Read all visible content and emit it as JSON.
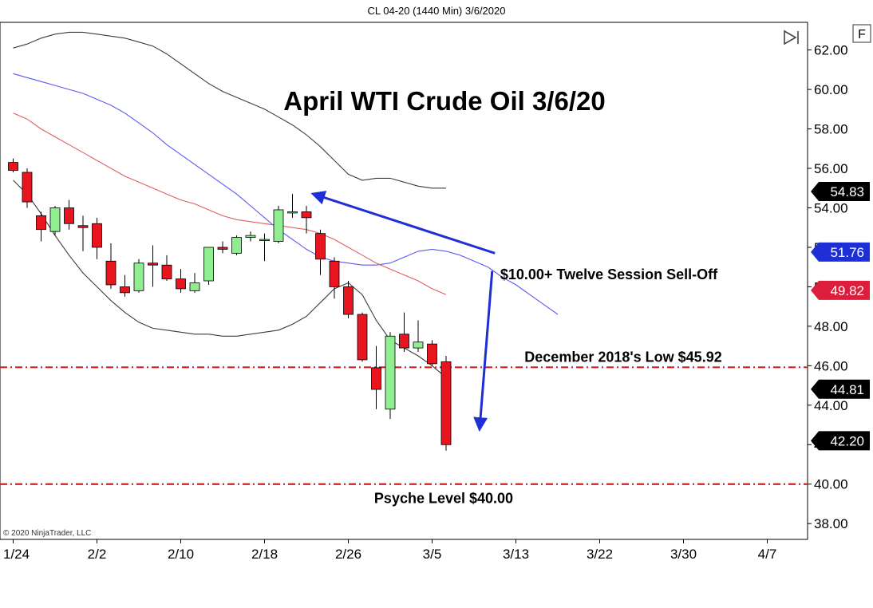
{
  "header": {
    "title": "CL 04-20 (1440 Min)  3/6/2020"
  },
  "toolbar": {
    "f_label": "F"
  },
  "copyright": "© 2020 NinjaTrader, LLC",
  "colors": {
    "up": "#90ee90",
    "down": "#e8141e",
    "upper_band": "#3c3c3c",
    "lower_band": "#3c3c3c",
    "blue_ma": "#5a5af0",
    "red_ma": "#e06060",
    "level": "#d42020",
    "arrow": "#1f2fd6",
    "tag_black": "#000000",
    "tag_blue": "#1f2fd6",
    "tag_red": "#dc1e3c"
  },
  "chart_data": {
    "type": "candlestick",
    "title": "April WTI Crude Oil 3/6/20",
    "xlabel": "",
    "ylabel": "",
    "ylim": [
      37.2,
      63.4
    ],
    "y_ticks": [
      {
        "value": 62,
        "label": "62.00"
      },
      {
        "value": 60,
        "label": "60.00"
      },
      {
        "value": 58,
        "label": "58.00"
      },
      {
        "value": 56,
        "label": "56.00"
      },
      {
        "value": 54,
        "label": "54.00"
      },
      {
        "value": 52,
        "label": "52.00"
      },
      {
        "value": 50,
        "label": "50.00"
      },
      {
        "value": 48,
        "label": "48.00"
      },
      {
        "value": 46,
        "label": "46.00"
      },
      {
        "value": 44,
        "label": "44.00"
      },
      {
        "value": 42,
        "label": "42.00"
      },
      {
        "value": 40,
        "label": "40.00"
      },
      {
        "value": 38,
        "label": "38.00"
      }
    ],
    "x_ticks": [
      {
        "index": 0,
        "label": "1/24"
      },
      {
        "index": 6,
        "label": "2/2"
      },
      {
        "index": 12,
        "label": "2/10"
      },
      {
        "index": 18,
        "label": "2/18"
      },
      {
        "index": 24,
        "label": "2/26"
      },
      {
        "index": 30,
        "label": "3/5"
      },
      {
        "index": 36,
        "label": "3/13"
      },
      {
        "index": 42,
        "label": "3/22"
      },
      {
        "index": 48,
        "label": "3/30"
      },
      {
        "index": 54,
        "label": "4/7"
      }
    ],
    "candles": [
      {
        "o": 56.3,
        "h": 56.5,
        "l": 55.8,
        "c": 55.9
      },
      {
        "o": 55.8,
        "h": 56.0,
        "l": 54.0,
        "c": 54.3
      },
      {
        "o": 53.6,
        "h": 53.8,
        "l": 52.3,
        "c": 52.9
      },
      {
        "o": 52.8,
        "h": 54.1,
        "l": 52.6,
        "c": 54.0
      },
      {
        "o": 54.0,
        "h": 54.4,
        "l": 52.9,
        "c": 53.2
      },
      {
        "o": 53.1,
        "h": 53.6,
        "l": 51.8,
        "c": 53.0
      },
      {
        "o": 53.2,
        "h": 53.5,
        "l": 51.4,
        "c": 52.0
      },
      {
        "o": 51.3,
        "h": 52.2,
        "l": 49.9,
        "c": 50.1
      },
      {
        "o": 50.0,
        "h": 50.6,
        "l": 49.5,
        "c": 49.7
      },
      {
        "o": 49.8,
        "h": 51.4,
        "l": 49.7,
        "c": 51.2
      },
      {
        "o": 51.2,
        "h": 52.1,
        "l": 50.0,
        "c": 51.1
      },
      {
        "o": 51.1,
        "h": 51.6,
        "l": 50.3,
        "c": 50.4
      },
      {
        "o": 50.4,
        "h": 50.9,
        "l": 49.7,
        "c": 49.9
      },
      {
        "o": 49.8,
        "h": 50.7,
        "l": 49.7,
        "c": 50.2
      },
      {
        "o": 50.3,
        "h": 52.0,
        "l": 50.1,
        "c": 52.0
      },
      {
        "o": 52.0,
        "h": 52.3,
        "l": 51.7,
        "c": 51.9
      },
      {
        "o": 51.7,
        "h": 52.6,
        "l": 51.6,
        "c": 52.5
      },
      {
        "o": 52.5,
        "h": 52.8,
        "l": 52.3,
        "c": 52.6
      },
      {
        "o": 52.4,
        "h": 52.7,
        "l": 51.3,
        "c": 52.4
      },
      {
        "o": 52.3,
        "h": 54.1,
        "l": 52.2,
        "c": 53.9
      },
      {
        "o": 53.8,
        "h": 54.7,
        "l": 53.5,
        "c": 53.8
      },
      {
        "o": 53.8,
        "h": 54.1,
        "l": 52.7,
        "c": 53.5
      },
      {
        "o": 52.7,
        "h": 52.9,
        "l": 50.6,
        "c": 51.4
      },
      {
        "o": 51.3,
        "h": 51.5,
        "l": 49.4,
        "c": 50.0
      },
      {
        "o": 50.0,
        "h": 50.3,
        "l": 48.4,
        "c": 48.6
      },
      {
        "o": 48.6,
        "h": 48.7,
        "l": 46.2,
        "c": 46.3
      },
      {
        "o": 45.9,
        "h": 47.0,
        "l": 43.8,
        "c": 44.8
      },
      {
        "o": 43.8,
        "h": 47.7,
        "l": 43.3,
        "c": 47.5
      },
      {
        "o": 47.6,
        "h": 48.7,
        "l": 46.7,
        "c": 46.9
      },
      {
        "o": 46.9,
        "h": 48.3,
        "l": 46.7,
        "c": 47.2
      },
      {
        "o": 47.1,
        "h": 47.3,
        "l": 46.0,
        "c": 46.1
      },
      {
        "o": 46.2,
        "h": 46.5,
        "l": 41.7,
        "c": 42.0
      }
    ],
    "upper_band": [
      [
        0,
        62.1
      ],
      [
        1,
        62.3
      ],
      [
        2,
        62.6
      ],
      [
        3,
        62.8
      ],
      [
        4,
        62.9
      ],
      [
        5,
        62.9
      ],
      [
        6,
        62.8
      ],
      [
        7,
        62.7
      ],
      [
        8,
        62.6
      ],
      [
        9,
        62.4
      ],
      [
        10,
        62.2
      ],
      [
        11,
        61.8
      ],
      [
        12,
        61.3
      ],
      [
        13,
        60.8
      ],
      [
        14,
        60.3
      ],
      [
        15,
        59.9
      ],
      [
        16,
        59.6
      ],
      [
        17,
        59.3
      ],
      [
        18,
        59.0
      ],
      [
        19,
        58.6
      ],
      [
        20,
        58.2
      ],
      [
        21,
        57.7
      ],
      [
        22,
        57.1
      ],
      [
        23,
        56.4
      ],
      [
        24,
        55.7
      ],
      [
        25,
        55.4
      ],
      [
        26,
        55.5
      ],
      [
        27,
        55.5
      ],
      [
        28,
        55.3
      ],
      [
        29,
        55.1
      ],
      [
        30,
        55.0
      ],
      [
        31,
        55.0
      ]
    ],
    "lower_band": [
      [
        0,
        55.4
      ],
      [
        1,
        54.7
      ],
      [
        2,
        53.7
      ],
      [
        3,
        52.6
      ],
      [
        4,
        51.6
      ],
      [
        5,
        50.7
      ],
      [
        6,
        50.0
      ],
      [
        7,
        49.3
      ],
      [
        8,
        48.7
      ],
      [
        9,
        48.2
      ],
      [
        10,
        47.9
      ],
      [
        11,
        47.8
      ],
      [
        12,
        47.7
      ],
      [
        13,
        47.6
      ],
      [
        14,
        47.6
      ],
      [
        15,
        47.5
      ],
      [
        16,
        47.5
      ],
      [
        17,
        47.6
      ],
      [
        18,
        47.7
      ],
      [
        19,
        47.8
      ],
      [
        20,
        48.1
      ],
      [
        21,
        48.5
      ],
      [
        22,
        49.2
      ],
      [
        23,
        49.9
      ],
      [
        24,
        50.2
      ],
      [
        25,
        49.6
      ],
      [
        26,
        48.3
      ],
      [
        27,
        47.3
      ],
      [
        28,
        46.9
      ],
      [
        29,
        46.5
      ],
      [
        30,
        46.0
      ],
      [
        31,
        45.4
      ]
    ],
    "blue_ma": [
      [
        0,
        60.8
      ],
      [
        1,
        60.6
      ],
      [
        2,
        60.4
      ],
      [
        3,
        60.2
      ],
      [
        4,
        60.0
      ],
      [
        5,
        59.8
      ],
      [
        6,
        59.5
      ],
      [
        7,
        59.2
      ],
      [
        8,
        58.8
      ],
      [
        9,
        58.3
      ],
      [
        10,
        57.8
      ],
      [
        11,
        57.2
      ],
      [
        12,
        56.7
      ],
      [
        13,
        56.2
      ],
      [
        14,
        55.7
      ],
      [
        15,
        55.2
      ],
      [
        16,
        54.7
      ],
      [
        17,
        54.1
      ],
      [
        18,
        53.5
      ],
      [
        19,
        52.9
      ],
      [
        20,
        52.4
      ],
      [
        21,
        51.9
      ],
      [
        22,
        51.5
      ],
      [
        23,
        51.3
      ],
      [
        24,
        51.2
      ],
      [
        25,
        51.1
      ],
      [
        26,
        51.1
      ],
      [
        27,
        51.2
      ],
      [
        28,
        51.5
      ],
      [
        29,
        51.8
      ],
      [
        30,
        51.9
      ],
      [
        31,
        51.8
      ],
      [
        32,
        51.6
      ],
      [
        33,
        51.3
      ],
      [
        34,
        51.0
      ],
      [
        35,
        50.5
      ],
      [
        36,
        50.1
      ],
      [
        37,
        49.6
      ],
      [
        38,
        49.1
      ],
      [
        39,
        48.6
      ]
    ],
    "red_ma": [
      [
        0,
        58.8
      ],
      [
        1,
        58.5
      ],
      [
        2,
        58.0
      ],
      [
        3,
        57.6
      ],
      [
        4,
        57.2
      ],
      [
        5,
        56.8
      ],
      [
        6,
        56.4
      ],
      [
        7,
        56.0
      ],
      [
        8,
        55.6
      ],
      [
        9,
        55.3
      ],
      [
        10,
        55.0
      ],
      [
        11,
        54.7
      ],
      [
        12,
        54.4
      ],
      [
        13,
        54.2
      ],
      [
        14,
        53.9
      ],
      [
        15,
        53.6
      ],
      [
        16,
        53.4
      ],
      [
        17,
        53.3
      ],
      [
        18,
        53.2
      ],
      [
        19,
        53.1
      ],
      [
        20,
        53.0
      ],
      [
        21,
        52.9
      ],
      [
        22,
        52.7
      ],
      [
        23,
        52.4
      ],
      [
        24,
        52.0
      ],
      [
        25,
        51.6
      ],
      [
        26,
        51.2
      ],
      [
        27,
        50.9
      ],
      [
        28,
        50.6
      ],
      [
        29,
        50.3
      ],
      [
        30,
        49.9
      ],
      [
        31,
        49.6
      ]
    ],
    "levels": [
      {
        "value": 45.92,
        "label": "December 2018's Low $45.92"
      },
      {
        "value": 40.0,
        "label": "Psyche Level $40.00"
      }
    ],
    "annotations": [
      {
        "text": "$10.00+ Twelve Session Sell-Off",
        "anchor_index": 34.5,
        "anchor_value": 51.7
      }
    ],
    "price_tags": [
      {
        "value": 54.83,
        "label": "54.83",
        "style": "black"
      },
      {
        "value": 51.76,
        "label": "51.76",
        "style": "blue"
      },
      {
        "value": 49.82,
        "label": "49.82",
        "style": "red"
      },
      {
        "value": 44.81,
        "label": "44.81",
        "style": "black"
      },
      {
        "value": 42.2,
        "label": "42.20",
        "style": "black"
      }
    ],
    "grid": false
  }
}
